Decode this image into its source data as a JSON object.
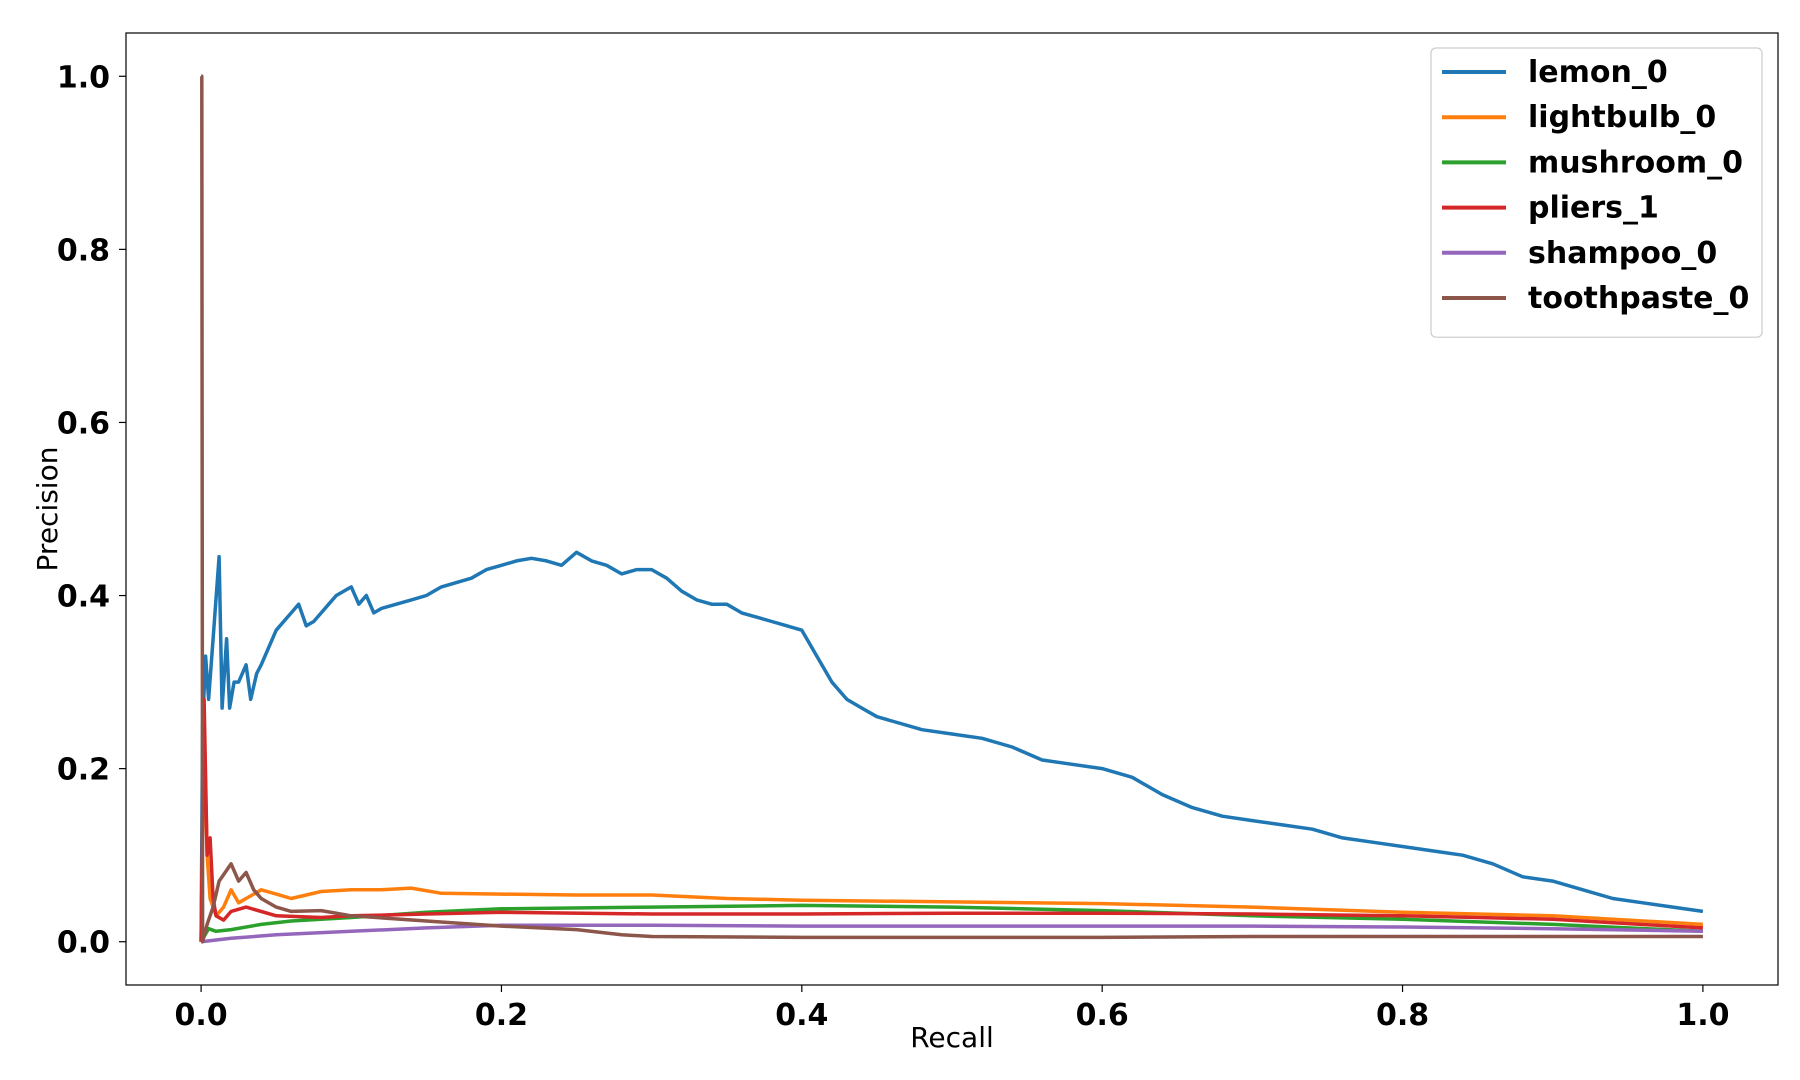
{
  "chart_data": {
    "type": "line",
    "title": "",
    "xlabel": "Recall",
    "ylabel": "Precision",
    "xlim": [
      -0.05,
      1.05
    ],
    "ylim": [
      -0.05,
      1.05
    ],
    "xticks": [
      0.0,
      0.2,
      0.4,
      0.6,
      0.8,
      1.0
    ],
    "xtick_labels": [
      "0.0",
      "0.2",
      "0.4",
      "0.6",
      "0.8",
      "1.0"
    ],
    "yticks": [
      0.0,
      0.2,
      0.4,
      0.6,
      0.8,
      1.0
    ],
    "ytick_labels": [
      "0.0",
      "0.2",
      "0.4",
      "0.6",
      "0.8",
      "1.0"
    ],
    "grid": false,
    "legend_position": "top-right",
    "series": [
      {
        "name": "lemon_0",
        "color": "#1f77b4",
        "x": [
          0.0,
          0.001,
          0.003,
          0.005,
          0.008,
          0.012,
          0.014,
          0.017,
          0.019,
          0.022,
          0.025,
          0.03,
          0.033,
          0.037,
          0.04,
          0.045,
          0.05,
          0.055,
          0.06,
          0.065,
          0.07,
          0.075,
          0.08,
          0.085,
          0.09,
          0.1,
          0.105,
          0.11,
          0.115,
          0.12,
          0.13,
          0.14,
          0.15,
          0.16,
          0.17,
          0.18,
          0.19,
          0.2,
          0.21,
          0.22,
          0.23,
          0.24,
          0.25,
          0.26,
          0.27,
          0.28,
          0.29,
          0.3,
          0.31,
          0.32,
          0.33,
          0.34,
          0.35,
          0.36,
          0.37,
          0.38,
          0.39,
          0.4,
          0.41,
          0.42,
          0.43,
          0.44,
          0.45,
          0.46,
          0.48,
          0.5,
          0.52,
          0.54,
          0.56,
          0.58,
          0.6,
          0.62,
          0.64,
          0.66,
          0.68,
          0.7,
          0.72,
          0.74,
          0.76,
          0.78,
          0.8,
          0.82,
          0.84,
          0.86,
          0.88,
          0.9,
          0.92,
          0.94,
          0.96,
          0.98,
          1.0
        ],
        "values": [
          0.0,
          0.25,
          0.33,
          0.28,
          0.35,
          0.445,
          0.27,
          0.35,
          0.27,
          0.3,
          0.3,
          0.32,
          0.28,
          0.31,
          0.32,
          0.34,
          0.36,
          0.37,
          0.38,
          0.39,
          0.365,
          0.37,
          0.38,
          0.39,
          0.4,
          0.41,
          0.39,
          0.4,
          0.38,
          0.385,
          0.39,
          0.395,
          0.4,
          0.41,
          0.415,
          0.42,
          0.43,
          0.435,
          0.44,
          0.443,
          0.44,
          0.435,
          0.45,
          0.44,
          0.435,
          0.425,
          0.43,
          0.43,
          0.42,
          0.405,
          0.395,
          0.39,
          0.39,
          0.38,
          0.375,
          0.37,
          0.365,
          0.36,
          0.33,
          0.3,
          0.28,
          0.27,
          0.26,
          0.255,
          0.245,
          0.24,
          0.235,
          0.225,
          0.21,
          0.205,
          0.2,
          0.19,
          0.17,
          0.155,
          0.145,
          0.14,
          0.135,
          0.13,
          0.12,
          0.115,
          0.11,
          0.105,
          0.1,
          0.09,
          0.075,
          0.07,
          0.06,
          0.05,
          0.045,
          0.04,
          0.035
        ]
      },
      {
        "name": "lightbulb_0",
        "color": "#ff7f0e",
        "x": [
          0.0,
          0.002,
          0.004,
          0.006,
          0.01,
          0.015,
          0.02,
          0.025,
          0.03,
          0.04,
          0.05,
          0.06,
          0.08,
          0.1,
          0.12,
          0.14,
          0.16,
          0.2,
          0.25,
          0.3,
          0.35,
          0.4,
          0.5,
          0.6,
          0.7,
          0.8,
          0.9,
          1.0
        ],
        "values": [
          0.0,
          0.25,
          0.1,
          0.05,
          0.03,
          0.04,
          0.06,
          0.045,
          0.05,
          0.06,
          0.055,
          0.05,
          0.058,
          0.06,
          0.06,
          0.062,
          0.056,
          0.055,
          0.054,
          0.054,
          0.05,
          0.048,
          0.046,
          0.044,
          0.04,
          0.034,
          0.03,
          0.02
        ]
      },
      {
        "name": "mushroom_0",
        "color": "#2ca02c",
        "x": [
          0.0,
          0.005,
          0.01,
          0.02,
          0.04,
          0.06,
          0.08,
          0.1,
          0.15,
          0.2,
          0.3,
          0.4,
          0.5,
          0.6,
          0.7,
          0.8,
          0.9,
          1.0
        ],
        "values": [
          0.0,
          0.015,
          0.012,
          0.014,
          0.02,
          0.024,
          0.026,
          0.028,
          0.034,
          0.038,
          0.04,
          0.042,
          0.04,
          0.036,
          0.03,
          0.026,
          0.02,
          0.012
        ]
      },
      {
        "name": "pliers_1",
        "color": "#d62728",
        "x": [
          0.0,
          0.002,
          0.004,
          0.006,
          0.008,
          0.01,
          0.015,
          0.02,
          0.03,
          0.05,
          0.08,
          0.1,
          0.15,
          0.2,
          0.3,
          0.4,
          0.5,
          0.6,
          0.7,
          0.8,
          0.9,
          1.0
        ],
        "values": [
          0.0,
          0.28,
          0.1,
          0.12,
          0.05,
          0.03,
          0.025,
          0.035,
          0.04,
          0.03,
          0.028,
          0.03,
          0.032,
          0.034,
          0.032,
          0.032,
          0.033,
          0.033,
          0.032,
          0.03,
          0.026,
          0.016
        ]
      },
      {
        "name": "shampoo_0",
        "color": "#9467bd",
        "x": [
          0.0,
          0.02,
          0.05,
          0.1,
          0.15,
          0.2,
          0.3,
          0.4,
          0.5,
          0.6,
          0.7,
          0.8,
          0.9,
          1.0
        ],
        "values": [
          0.0,
          0.004,
          0.008,
          0.012,
          0.016,
          0.019,
          0.019,
          0.018,
          0.018,
          0.018,
          0.018,
          0.017,
          0.015,
          0.012
        ]
      },
      {
        "name": "toothpaste_0",
        "color": "#8c564b",
        "x": [
          0.0,
          0.0005,
          0.001,
          0.004,
          0.008,
          0.012,
          0.016,
          0.02,
          0.025,
          0.03,
          0.035,
          0.04,
          0.05,
          0.06,
          0.08,
          0.1,
          0.15,
          0.2,
          0.25,
          0.28,
          0.3,
          0.4,
          0.5,
          0.6,
          0.7,
          0.8,
          0.9,
          1.0
        ],
        "values": [
          1.0,
          1.0,
          0.0,
          0.02,
          0.04,
          0.07,
          0.08,
          0.09,
          0.07,
          0.08,
          0.06,
          0.05,
          0.04,
          0.035,
          0.036,
          0.03,
          0.024,
          0.018,
          0.014,
          0.008,
          0.006,
          0.005,
          0.005,
          0.005,
          0.006,
          0.006,
          0.006,
          0.006
        ]
      }
    ]
  }
}
